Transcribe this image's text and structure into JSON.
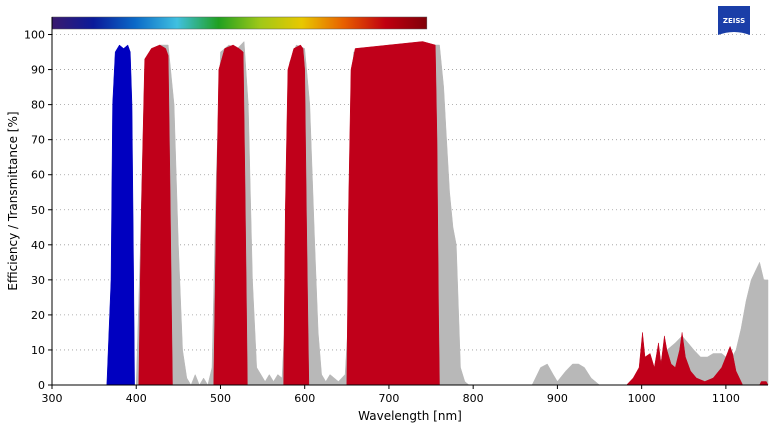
{
  "brand": {
    "name": "ZEISS",
    "color": "#1a3ea8"
  },
  "chart_data": {
    "type": "area",
    "title": "",
    "xlabel": "Wavelength [nm]",
    "ylabel": "Efficiency / Transmittance [%]",
    "xlim": [
      300,
      1150
    ],
    "ylim": [
      0,
      105
    ],
    "xticks": [
      300,
      400,
      500,
      600,
      700,
      800,
      900,
      1000,
      1100
    ],
    "yticks": [
      0,
      10,
      20,
      30,
      40,
      50,
      60,
      70,
      80,
      90,
      100
    ],
    "grid": "horizontal dotted",
    "spectrum_bar": {
      "range": [
        300,
        745
      ],
      "colors": [
        "#3a1a6e",
        "#0a1a9a",
        "#0a6ac8",
        "#40c0e0",
        "#20a020",
        "#a0c818",
        "#e8c800",
        "#e86000",
        "#c00010",
        "#800008"
      ]
    },
    "series": [
      {
        "color": "#b8b8b8",
        "points": [
          [
            400,
            0
          ],
          [
            405,
            40
          ],
          [
            410,
            90
          ],
          [
            418,
            96
          ],
          [
            428,
            97
          ],
          [
            438,
            97
          ],
          [
            445,
            80
          ],
          [
            450,
            40
          ],
          [
            455,
            10
          ],
          [
            460,
            2
          ],
          [
            465,
            0
          ],
          [
            470,
            3
          ],
          [
            475,
            0
          ],
          [
            480,
            2
          ],
          [
            485,
            0
          ],
          [
            490,
            5
          ],
          [
            495,
            60
          ],
          [
            500,
            95
          ],
          [
            510,
            97
          ],
          [
            520,
            96
          ],
          [
            528,
            98
          ],
          [
            533,
            80
          ],
          [
            538,
            30
          ],
          [
            543,
            5
          ],
          [
            548,
            3
          ],
          [
            553,
            1
          ],
          [
            558,
            3
          ],
          [
            563,
            1
          ],
          [
            568,
            3
          ],
          [
            573,
            2
          ],
          [
            577,
            20
          ],
          [
            582,
            92
          ],
          [
            590,
            97
          ],
          [
            600,
            96
          ],
          [
            606,
            80
          ],
          [
            612,
            40
          ],
          [
            616,
            15
          ],
          [
            620,
            3
          ],
          [
            625,
            1
          ],
          [
            630,
            3
          ],
          [
            635,
            2
          ],
          [
            640,
            1
          ],
          [
            648,
            3
          ],
          [
            652,
            20
          ],
          [
            658,
            95
          ],
          [
            700,
            97
          ],
          [
            760,
            97
          ],
          [
            765,
            85
          ],
          [
            768,
            72
          ],
          [
            772,
            55
          ],
          [
            776,
            45
          ],
          [
            780,
            40
          ],
          [
            785,
            5
          ],
          [
            790,
            1
          ],
          [
            795,
            0
          ],
          [
            870,
            0
          ],
          [
            880,
            5
          ],
          [
            888,
            6
          ],
          [
            895,
            3
          ],
          [
            900,
            1
          ],
          [
            910,
            4
          ],
          [
            918,
            6
          ],
          [
            925,
            6
          ],
          [
            932,
            5
          ],
          [
            940,
            2
          ],
          [
            950,
            0
          ],
          [
            1000,
            0
          ],
          [
            1010,
            2
          ],
          [
            1020,
            6
          ],
          [
            1030,
            10
          ],
          [
            1040,
            12
          ],
          [
            1048,
            14
          ],
          [
            1055,
            12
          ],
          [
            1062,
            10
          ],
          [
            1070,
            8
          ],
          [
            1078,
            8
          ],
          [
            1085,
            9
          ],
          [
            1095,
            9
          ],
          [
            1105,
            7
          ],
          [
            1112,
            10
          ],
          [
            1118,
            16
          ],
          [
            1124,
            24
          ],
          [
            1130,
            30
          ],
          [
            1136,
            33
          ],
          [
            1140,
            35
          ],
          [
            1145,
            30
          ],
          [
            1150,
            30
          ],
          [
            1150,
            0
          ]
        ]
      },
      {
        "color": "#0000c0",
        "points": [
          [
            365,
            0
          ],
          [
            370,
            30
          ],
          [
            372,
            80
          ],
          [
            375,
            95
          ],
          [
            380,
            97
          ],
          [
            385,
            96
          ],
          [
            390,
            97
          ],
          [
            393,
            95
          ],
          [
            395,
            80
          ],
          [
            397,
            30
          ],
          [
            398,
            0
          ]
        ]
      },
      {
        "color": "#c0001a",
        "points": [
          [
            403,
            0
          ],
          [
            406,
            50
          ],
          [
            410,
            93
          ],
          [
            418,
            96
          ],
          [
            428,
            97
          ],
          [
            435,
            96
          ],
          [
            438,
            94
          ],
          [
            440,
            60
          ],
          [
            442,
            20
          ],
          [
            443,
            0
          ]
        ]
      },
      {
        "color": "#c0001a",
        "points": [
          [
            492,
            0
          ],
          [
            495,
            50
          ],
          [
            498,
            90
          ],
          [
            505,
            96
          ],
          [
            515,
            97
          ],
          [
            522,
            96
          ],
          [
            527,
            95
          ],
          [
            529,
            60
          ],
          [
            531,
            20
          ],
          [
            532,
            0
          ]
        ]
      },
      {
        "color": "#c0001a",
        "points": [
          [
            575,
            0
          ],
          [
            577,
            50
          ],
          [
            580,
            90
          ],
          [
            587,
            96
          ],
          [
            595,
            97
          ],
          [
            598,
            96
          ],
          [
            600,
            90
          ],
          [
            602,
            50
          ],
          [
            604,
            15
          ],
          [
            605,
            0
          ]
        ]
      },
      {
        "color": "#c0001a",
        "points": [
          [
            650,
            0
          ],
          [
            652,
            50
          ],
          [
            655,
            90
          ],
          [
            660,
            96
          ],
          [
            700,
            97
          ],
          [
            740,
            98
          ],
          [
            755,
            97
          ],
          [
            757,
            70
          ],
          [
            759,
            20
          ],
          [
            760,
            0
          ]
        ]
      },
      {
        "color": "#c0001a",
        "points": [
          [
            982,
            0
          ],
          [
            990,
            2
          ],
          [
            997,
            5
          ],
          [
            1001,
            15
          ],
          [
            1004,
            8
          ],
          [
            1010,
            9
          ],
          [
            1015,
            5
          ],
          [
            1020,
            12
          ],
          [
            1023,
            6
          ],
          [
            1027,
            14
          ],
          [
            1030,
            10
          ],
          [
            1035,
            6
          ],
          [
            1040,
            5
          ],
          [
            1045,
            10
          ],
          [
            1048,
            15
          ],
          [
            1052,
            8
          ],
          [
            1058,
            4
          ],
          [
            1065,
            2
          ],
          [
            1075,
            1
          ],
          [
            1085,
            2
          ],
          [
            1095,
            5
          ],
          [
            1100,
            8
          ],
          [
            1105,
            11
          ],
          [
            1108,
            9
          ],
          [
            1112,
            4
          ],
          [
            1118,
            1
          ],
          [
            1120,
            0
          ]
        ]
      },
      {
        "color": "#c0001a",
        "points": [
          [
            1140,
            0
          ],
          [
            1142,
            1
          ],
          [
            1148,
            1
          ],
          [
            1150,
            0
          ]
        ]
      }
    ]
  }
}
